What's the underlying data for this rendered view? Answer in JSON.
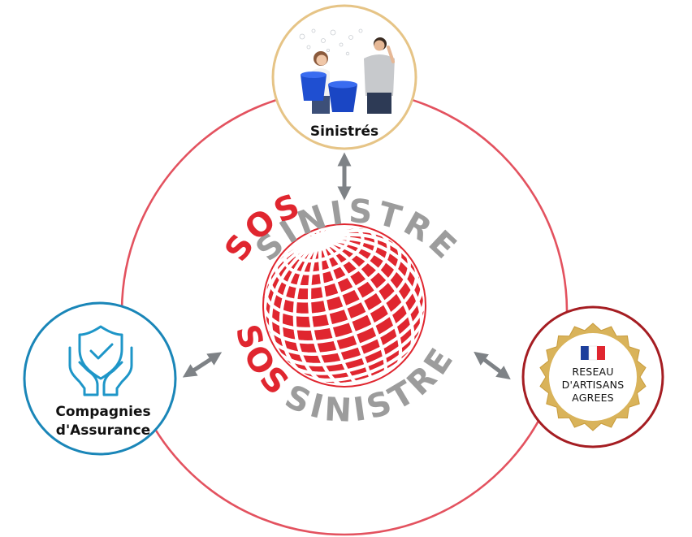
{
  "nodes": {
    "top": {
      "label": "Sinistrés"
    },
    "left": {
      "line1": "Compagnies",
      "line2": "d'Assurance"
    },
    "right": {
      "line1": "RESEAU",
      "line2": "D'ARTISANS",
      "line3": "AGREES"
    }
  },
  "logo": {
    "brand_red": "SOS",
    "brand_grey": "SINISTRE"
  },
  "icons": {
    "top": "people-with-buckets-photo-icon",
    "left": "shield-hands-icon",
    "right": "french-flag-seal-icon",
    "center": "globe-icon"
  },
  "colors": {
    "ring": "#e3525f",
    "top_border": "#e6c486",
    "left_border": "#1a86b8",
    "right_border": "#a51d22",
    "arrow": "#7e8286",
    "brand_red": "#e0262f",
    "brand_grey": "#9c9c9c",
    "seal_gold": "#d9b35a"
  }
}
